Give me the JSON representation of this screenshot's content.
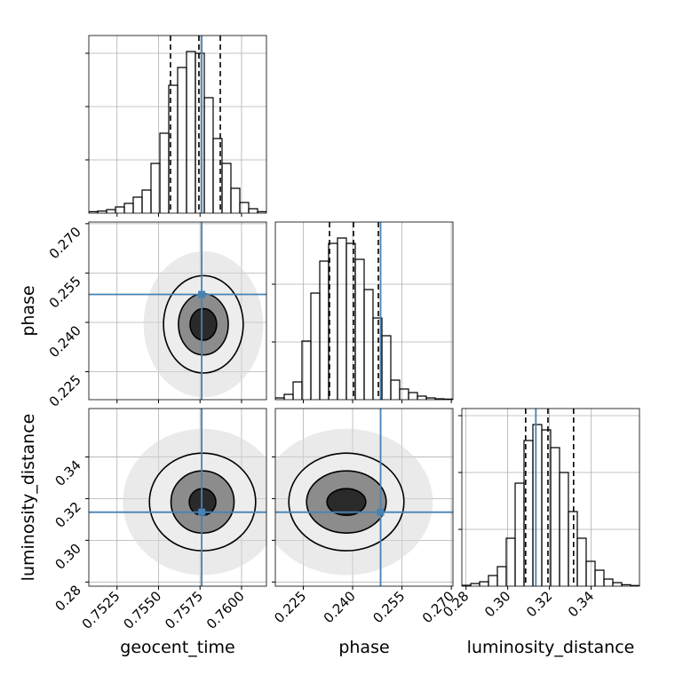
{
  "chart_data": {
    "type": "corner",
    "truth_color": "#4682b4",
    "grid": true,
    "hist_ylim": [
      0,
      1000
    ],
    "parameters": [
      {
        "name": "geocent_time",
        "truth": 0.7576,
        "lim": [
          0.7508,
          0.7615
        ],
        "ticks": [
          0.7525,
          {
            "value": 0.755,
            "label": "0.7550"
          },
          0.7575,
          {
            "value": 0.76,
            "label": "0.7600"
          }
        ],
        "hist_ticks": [
          300,
          600,
          900
        ],
        "bins": [
          0.7508,
          0.751335,
          0.75187,
          0.752405,
          0.75294,
          0.753475,
          0.75401,
          0.754545,
          0.75508,
          0.755615,
          0.75615,
          0.756685,
          0.75722,
          0.757755,
          0.75829,
          0.758825,
          0.75936,
          0.759895,
          0.76043,
          0.760965,
          0.7615
        ],
        "counts": [
          8,
          12,
          20,
          35,
          55,
          90,
          130,
          280,
          450,
          720,
          820,
          910,
          900,
          650,
          420,
          280,
          140,
          60,
          25,
          8
        ],
        "quantiles": [
          0.75572,
          0.75743,
          0.75872
        ]
      },
      {
        "name": "phase",
        "truth": 0.2485,
        "lim": [
          0.2165,
          0.2705
        ],
        "ticks": [
          0.225,
          {
            "value": 0.24,
            "label": "0.240"
          },
          0.255,
          {
            "value": 0.27,
            "label": "0.270"
          }
        ],
        "hist_ticks": [
          325,
          650
        ],
        "bins": [
          0.2165,
          0.2192,
          0.2219,
          0.2246,
          0.2273,
          0.23,
          0.2327,
          0.2354,
          0.2381,
          0.2408,
          0.2435,
          0.2462,
          0.2489,
          0.2516,
          0.2543,
          0.257,
          0.2597,
          0.2624,
          0.2651,
          0.2678,
          0.2705
        ],
        "counts": [
          10,
          30,
          100,
          330,
          600,
          780,
          880,
          910,
          880,
          790,
          620,
          460,
          360,
          110,
          60,
          40,
          20,
          10,
          5,
          3
        ],
        "quantiles": [
          0.23297,
          0.24026,
          0.24782
        ]
      },
      {
        "name": "luminosity_distance",
        "truth": 0.3135,
        "lim": [
          0.278,
          0.3632
        ],
        "ticks": [
          0.28,
          {
            "value": 0.3,
            "label": "0.30"
          },
          0.32,
          0.34
        ],
        "hist_ticks": [
          320,
          640,
          960
        ],
        "bins": [
          0.278,
          0.28226,
          0.28652,
          0.29078,
          0.29504,
          0.2993,
          0.30356,
          0.30782,
          0.31208,
          0.31634,
          0.3206,
          0.32486,
          0.32912,
          0.33338,
          0.33764,
          0.3419,
          0.34616,
          0.35042,
          0.35468,
          0.35894,
          0.3632
        ],
        "counts": [
          5,
          15,
          25,
          60,
          110,
          270,
          580,
          820,
          910,
          880,
          780,
          640,
          420,
          270,
          140,
          90,
          40,
          20,
          8,
          4
        ],
        "quantiles": [
          0.3086,
          0.3193,
          0.3316
        ]
      }
    ],
    "pairs": [
      {
        "x": 0,
        "y": 1,
        "center": [
          0.7577,
          0.2394
        ],
        "contours": [
          {
            "rx": 0.0008,
            "ry": 0.0048
          },
          {
            "rx": 0.0015,
            "ry": 0.0093
          },
          {
            "rx": 0.0024,
            "ry": 0.0148
          }
        ]
      },
      {
        "x": 0,
        "y": 2,
        "center": [
          0.75765,
          0.3184
        ],
        "contours": [
          {
            "rx": 0.0008,
            "ry": 0.0064
          },
          {
            "rx": 0.0019,
            "ry": 0.0149
          },
          {
            "rx": 0.0032,
            "ry": 0.0234
          }
        ]
      },
      {
        "x": 1,
        "y": 2,
        "center": [
          0.2381,
          0.3184
        ],
        "contours": [
          {
            "rx": 0.0059,
            "ry": 0.0064
          },
          {
            "rx": 0.0121,
            "ry": 0.0149
          },
          {
            "rx": 0.0175,
            "ry": 0.0234
          }
        ]
      }
    ]
  }
}
